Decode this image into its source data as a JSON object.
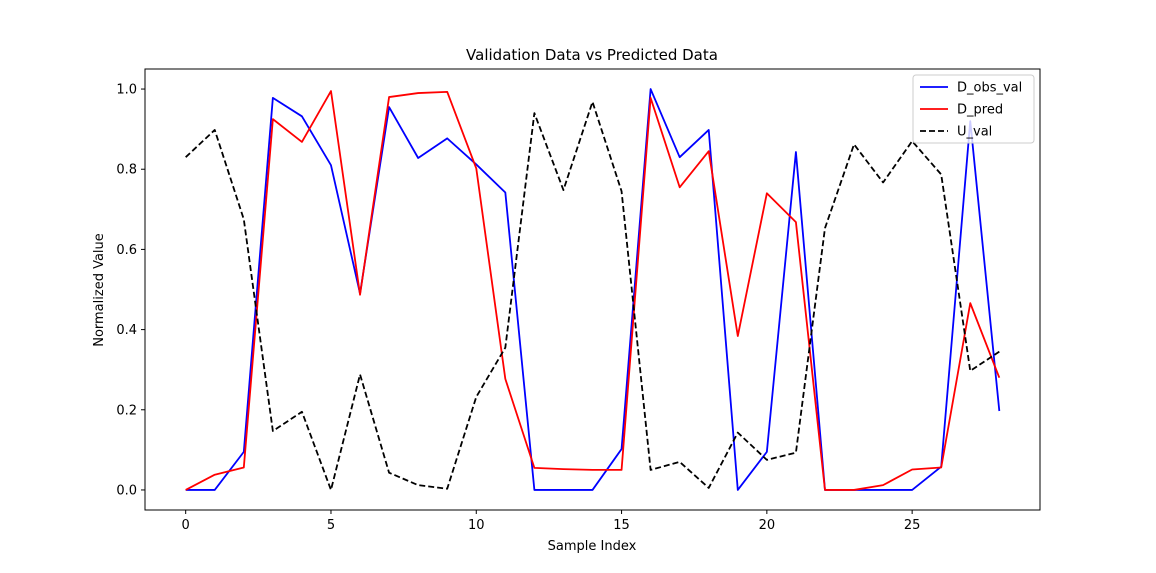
{
  "chart_data": {
    "type": "line",
    "title": "Validation Data vs Predicted Data",
    "xlabel": "Sample Index",
    "ylabel": "Normalized Value",
    "xlim": [
      -1.4,
      29.4
    ],
    "ylim": [
      -0.05,
      1.05
    ],
    "xticks": [
      0,
      5,
      10,
      15,
      20,
      25
    ],
    "yticks": [
      0.0,
      0.2,
      0.4,
      0.6,
      0.8,
      1.0
    ],
    "xtick_labels": [
      "0",
      "5",
      "10",
      "15",
      "20",
      "25"
    ],
    "ytick_labels": [
      "0.0",
      "0.2",
      "0.4",
      "0.6",
      "0.8",
      "1.0"
    ],
    "grid": false,
    "legend_position": "top-right",
    "x": [
      0,
      1,
      2,
      3,
      4,
      5,
      6,
      7,
      8,
      9,
      10,
      11,
      12,
      13,
      14,
      15,
      16,
      17,
      18,
      19,
      20,
      21,
      22,
      23,
      24,
      25,
      26,
      27,
      28
    ],
    "series": [
      {
        "name": "D_obs_val",
        "color": "#0000ff",
        "style": "solid",
        "values": [
          0.0,
          0.0,
          0.095,
          0.978,
          0.932,
          0.81,
          0.49,
          0.955,
          0.828,
          0.877,
          0.812,
          0.742,
          0.0,
          0.0,
          0.0,
          0.102,
          1.0,
          0.83,
          0.898,
          0.0,
          0.095,
          0.843,
          0.0,
          0.0,
          0.0,
          0.0,
          0.058,
          0.92,
          0.197
        ]
      },
      {
        "name": "D_pred",
        "color": "#ff0000",
        "style": "solid",
        "values": [
          0.0,
          0.038,
          0.056,
          0.925,
          0.868,
          0.995,
          0.487,
          0.98,
          0.99,
          0.993,
          0.802,
          0.277,
          0.055,
          0.052,
          0.05,
          0.05,
          0.978,
          0.755,
          0.845,
          0.384,
          0.74,
          0.668,
          0.0,
          0.0,
          0.012,
          0.051,
          0.056,
          0.466,
          0.28
        ]
      },
      {
        "name": "U_val",
        "color": "#000000",
        "style": "dashed",
        "values": [
          0.83,
          0.898,
          0.675,
          0.147,
          0.195,
          0.0,
          0.288,
          0.043,
          0.012,
          0.003,
          0.232,
          0.355,
          0.94,
          0.748,
          0.968,
          0.745,
          0.05,
          0.07,
          0.005,
          0.143,
          0.075,
          0.093,
          0.653,
          0.862,
          0.767,
          0.87,
          0.787,
          0.297,
          0.345
        ]
      }
    ]
  }
}
